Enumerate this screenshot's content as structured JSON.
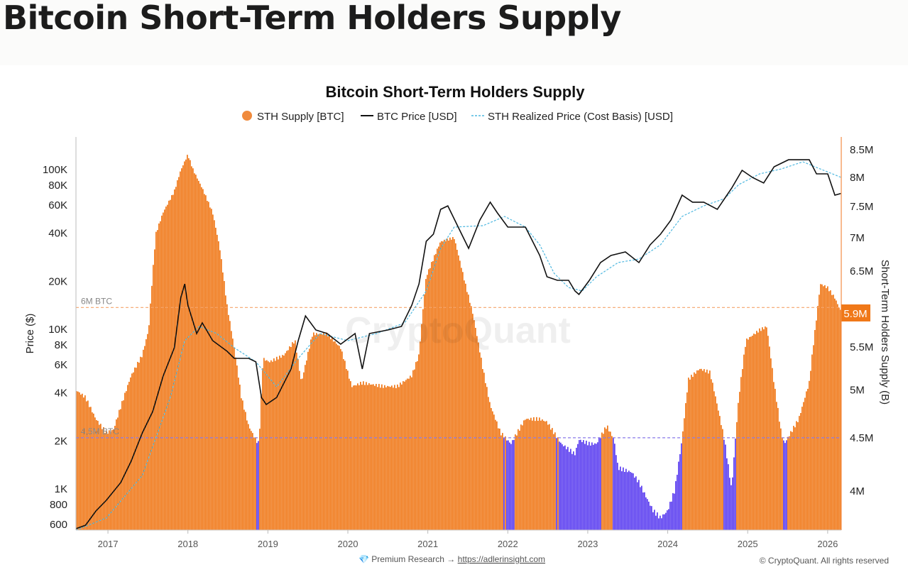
{
  "page_title": "Bitcoin Short-Term Holders Supply",
  "colors": {
    "supply_above": "#f07818",
    "supply_below": "#5b3ef0",
    "price": "#111111",
    "realized": "#4fb8e0",
    "ref6": "#f5a46a",
    "ref45": "#8a7ae8"
  },
  "footer": {
    "premium": "💎 Premium Research → ",
    "link": "https://adlerinsight.com",
    "copyright": "© CryptoQuant. All rights reserved"
  },
  "watermark": "CryptoQuant",
  "chart_data": {
    "type": "bar+line",
    "title": "Bitcoin Short-Term Holders Supply",
    "legend": [
      "STH Supply [BTC]",
      "BTC Price [USD]",
      "STH Realized Price (Cost Basis) [USD]"
    ],
    "legend_position": "top-center",
    "ylabel_left": "Price ($)",
    "ylabel_right": "Short-Term Holders Supply (B)",
    "xlim": [
      2016.6,
      2026.17
    ],
    "ylim_left": [
      552,
      135000
    ],
    "ylim_right": [
      3.67,
      8.7
    ],
    "scale_left": "log",
    "scale_right": "log",
    "x_ticks": [
      "2017",
      "2018",
      "2019",
      "2020",
      "2021",
      "2022",
      "2023",
      "2024",
      "2025",
      "2026"
    ],
    "left_ticks": [
      [
        "100K",
        100000
      ],
      [
        "80K",
        80000
      ],
      [
        "60K",
        60000
      ],
      [
        "40K",
        40000
      ],
      [
        "20K",
        20000
      ],
      [
        "10K",
        10000
      ],
      [
        "8K",
        8000
      ],
      [
        "6K",
        6000
      ],
      [
        "4K",
        4000
      ],
      [
        "2K",
        2000
      ],
      [
        "1K",
        1000
      ],
      [
        "800",
        800
      ],
      [
        "600",
        600
      ]
    ],
    "right_ticks": [
      [
        "8.5M",
        8.5
      ],
      [
        "8M",
        8
      ],
      [
        "7.5M",
        7.5
      ],
      [
        "7M",
        7
      ],
      [
        "6.5M",
        6.5
      ],
      [
        "5.5M",
        5.5
      ],
      [
        "5M",
        5
      ],
      [
        "4.5M",
        4.5
      ],
      [
        "4M",
        4
      ]
    ],
    "reference_lines": [
      {
        "label": "6M BTC",
        "value": 6.0
      },
      {
        "label": "4,5M BTC",
        "value": 4.5
      }
    ],
    "current_value_label": "5.9M",
    "current_value": 5.9,
    "sth_supply_millions": [
      [
        2016.6,
        5.0
      ],
      [
        2016.72,
        4.92
      ],
      [
        2016.85,
        4.69
      ],
      [
        2016.98,
        4.55
      ],
      [
        2017.07,
        4.58
      ],
      [
        2017.2,
        4.92
      ],
      [
        2017.29,
        5.16
      ],
      [
        2017.43,
        5.4
      ],
      [
        2017.51,
        5.71
      ],
      [
        2017.6,
        7.06
      ],
      [
        2017.69,
        7.4
      ],
      [
        2017.83,
        7.75
      ],
      [
        2017.91,
        8.12
      ],
      [
        2018.0,
        8.41
      ],
      [
        2018.07,
        8.12
      ],
      [
        2018.18,
        7.81
      ],
      [
        2018.31,
        7.4
      ],
      [
        2018.4,
        6.84
      ],
      [
        2018.49,
        6.03
      ],
      [
        2018.58,
        5.49
      ],
      [
        2018.67,
        4.92
      ],
      [
        2018.76,
        4.62
      ],
      [
        2018.85,
        4.48
      ],
      [
        2018.89,
        4.44
      ],
      [
        2018.94,
        5.36
      ],
      [
        2019.02,
        5.32
      ],
      [
        2019.2,
        5.4
      ],
      [
        2019.34,
        5.58
      ],
      [
        2019.42,
        5.08
      ],
      [
        2019.56,
        5.66
      ],
      [
        2019.74,
        5.66
      ],
      [
        2019.91,
        5.49
      ],
      [
        2020.05,
        5.04
      ],
      [
        2020.18,
        5.08
      ],
      [
        2020.45,
        5.04
      ],
      [
        2020.62,
        5.04
      ],
      [
        2020.8,
        5.16
      ],
      [
        2020.89,
        5.4
      ],
      [
        2020.98,
        6.42
      ],
      [
        2021.16,
        6.94
      ],
      [
        2021.33,
        7.0
      ],
      [
        2021.47,
        6.32
      ],
      [
        2021.56,
        5.94
      ],
      [
        2021.69,
        5.24
      ],
      [
        2021.78,
        4.84
      ],
      [
        2021.91,
        4.55
      ],
      [
        2022.04,
        4.44
      ],
      [
        2022.22,
        4.69
      ],
      [
        2022.4,
        4.69
      ],
      [
        2022.49,
        4.66
      ],
      [
        2022.67,
        4.44
      ],
      [
        2022.84,
        4.34
      ],
      [
        2022.89,
        4.48
      ],
      [
        2023.02,
        4.44
      ],
      [
        2023.11,
        4.44
      ],
      [
        2023.24,
        4.62
      ],
      [
        2023.33,
        4.48
      ],
      [
        2023.38,
        4.21
      ],
      [
        2023.55,
        4.17
      ],
      [
        2023.64,
        4.08
      ],
      [
        2023.73,
        3.95
      ],
      [
        2023.82,
        3.83
      ],
      [
        2023.91,
        3.77
      ],
      [
        2024.0,
        3.83
      ],
      [
        2024.09,
        4.01
      ],
      [
        2024.18,
        4.48
      ],
      [
        2024.26,
        5.12
      ],
      [
        2024.4,
        5.24
      ],
      [
        2024.53,
        5.2
      ],
      [
        2024.62,
        4.84
      ],
      [
        2024.71,
        4.48
      ],
      [
        2024.8,
        4.01
      ],
      [
        2024.89,
        4.92
      ],
      [
        2024.98,
        5.58
      ],
      [
        2025.15,
        5.71
      ],
      [
        2025.24,
        5.75
      ],
      [
        2025.33,
        5.08
      ],
      [
        2025.42,
        4.55
      ],
      [
        2025.46,
        4.44
      ],
      [
        2025.51,
        4.51
      ],
      [
        2025.64,
        4.69
      ],
      [
        2025.77,
        5.08
      ],
      [
        2025.86,
        5.85
      ],
      [
        2025.91,
        6.32
      ],
      [
        2026.0,
        6.27
      ],
      [
        2026.09,
        6.13
      ],
      [
        2026.17,
        5.94
      ]
    ],
    "btc_price_usd": [
      [
        2016.6,
        564
      ],
      [
        2016.72,
        593
      ],
      [
        2016.85,
        728
      ],
      [
        2016.98,
        849
      ],
      [
        2017.16,
        1096
      ],
      [
        2017.29,
        1490
      ],
      [
        2017.43,
        2244
      ],
      [
        2017.56,
        3050
      ],
      [
        2017.69,
        5090
      ],
      [
        2017.83,
        7660
      ],
      [
        2017.91,
        15700
      ],
      [
        2017.96,
        19240
      ],
      [
        2018.0,
        14160
      ],
      [
        2018.11,
        9400
      ],
      [
        2018.18,
        10960
      ],
      [
        2018.31,
        8490
      ],
      [
        2018.49,
        7280
      ],
      [
        2018.58,
        6570
      ],
      [
        2018.76,
        6570
      ],
      [
        2018.85,
        6250
      ],
      [
        2018.92,
        3740
      ],
      [
        2018.98,
        3380
      ],
      [
        2019.11,
        3740
      ],
      [
        2019.29,
        5640
      ],
      [
        2019.38,
        8490
      ],
      [
        2019.47,
        12140
      ],
      [
        2019.6,
        9900
      ],
      [
        2019.74,
        9400
      ],
      [
        2019.91,
        8070
      ],
      [
        2020.09,
        9400
      ],
      [
        2020.18,
        5640
      ],
      [
        2020.27,
        9400
      ],
      [
        2020.5,
        9900
      ],
      [
        2020.67,
        10420
      ],
      [
        2020.8,
        14160
      ],
      [
        2020.89,
        19240
      ],
      [
        2020.98,
        35560
      ],
      [
        2021.07,
        39400
      ],
      [
        2021.16,
        56400
      ],
      [
        2021.25,
        59300
      ],
      [
        2021.38,
        43650
      ],
      [
        2021.51,
        32100
      ],
      [
        2021.65,
        48300
      ],
      [
        2021.78,
        62500
      ],
      [
        2021.87,
        53550
      ],
      [
        2022.0,
        43650
      ],
      [
        2022.22,
        43650
      ],
      [
        2022.31,
        35560
      ],
      [
        2022.4,
        28990
      ],
      [
        2022.49,
        21330
      ],
      [
        2022.62,
        20270
      ],
      [
        2022.76,
        20270
      ],
      [
        2022.84,
        17380
      ],
      [
        2022.89,
        16520
      ],
      [
        2023.02,
        20270
      ],
      [
        2023.16,
        26180
      ],
      [
        2023.29,
        28990
      ],
      [
        2023.47,
        30500
      ],
      [
        2023.64,
        26180
      ],
      [
        2023.78,
        33800
      ],
      [
        2023.91,
        39400
      ],
      [
        2024.04,
        48300
      ],
      [
        2024.18,
        69200
      ],
      [
        2024.31,
        62500
      ],
      [
        2024.45,
        62500
      ],
      [
        2024.62,
        56400
      ],
      [
        2024.8,
        76600
      ],
      [
        2024.93,
        99000
      ],
      [
        2025.06,
        89300
      ],
      [
        2025.2,
        82400
      ],
      [
        2025.33,
        104200
      ],
      [
        2025.51,
        115300
      ],
      [
        2025.64,
        115300
      ],
      [
        2025.77,
        115300
      ],
      [
        2025.86,
        94000
      ],
      [
        2026.0,
        94000
      ],
      [
        2026.09,
        69200
      ],
      [
        2026.17,
        71000
      ]
    ],
    "sth_realized_price_usd": [
      [
        2016.6,
        552
      ],
      [
        2016.98,
        658
      ],
      [
        2017.43,
        1215
      ],
      [
        2017.78,
        3740
      ],
      [
        2017.96,
        8490
      ],
      [
        2018.14,
        10420
      ],
      [
        2018.36,
        9400
      ],
      [
        2018.58,
        7660
      ],
      [
        2018.85,
        6250
      ],
      [
        2019.11,
        4365
      ],
      [
        2019.38,
        6570
      ],
      [
        2019.65,
        9400
      ],
      [
        2020.0,
        8490
      ],
      [
        2020.36,
        9400
      ],
      [
        2020.71,
        10960
      ],
      [
        2020.98,
        17380
      ],
      [
        2021.16,
        32100
      ],
      [
        2021.33,
        43650
      ],
      [
        2021.69,
        44570
      ],
      [
        2021.96,
        50900
      ],
      [
        2022.22,
        43650
      ],
      [
        2022.4,
        33800
      ],
      [
        2022.58,
        22400
      ],
      [
        2022.76,
        18280
      ],
      [
        2022.93,
        17380
      ],
      [
        2023.11,
        21330
      ],
      [
        2023.38,
        26180
      ],
      [
        2023.64,
        27540
      ],
      [
        2023.91,
        33800
      ],
      [
        2024.18,
        50900
      ],
      [
        2024.45,
        59300
      ],
      [
        2024.71,
        65770
      ],
      [
        2024.89,
        80700
      ],
      [
        2025.15,
        94000
      ],
      [
        2025.42,
        100900
      ],
      [
        2025.69,
        111900
      ],
      [
        2025.95,
        99000
      ],
      [
        2026.17,
        89300
      ]
    ]
  }
}
